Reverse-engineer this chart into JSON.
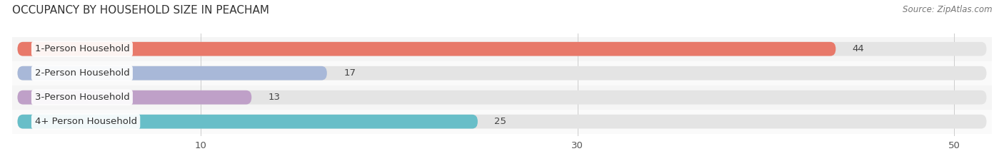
{
  "title": "OCCUPANCY BY HOUSEHOLD SIZE IN PEACHAM",
  "source": "Source: ZipAtlas.com",
  "categories": [
    "1-Person Household",
    "2-Person Household",
    "3-Person Household",
    "4+ Person Household"
  ],
  "values": [
    44,
    17,
    13,
    25
  ],
  "bar_colors": [
    "#E8796A",
    "#A8B8D8",
    "#BFA0C8",
    "#68BEC8"
  ],
  "xlim_max": 52,
  "xticks": [
    10,
    30,
    50
  ],
  "label_fontsize": 9.5,
  "value_fontsize": 9.5,
  "title_fontsize": 11,
  "source_fontsize": 8.5,
  "background_color": "#FFFFFF",
  "bar_height": 0.58,
  "row_bg_even": "#F5F5F5",
  "row_bg_odd": "#FAFAFA",
  "bg_bar_color": "#E4E4E4"
}
